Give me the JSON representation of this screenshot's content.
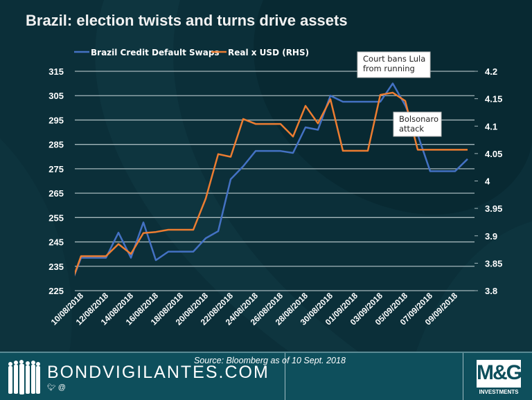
{
  "title": "Brazil: election twists and turns drive assets",
  "footer": {
    "brand": "BONDVIGILANTES.COM",
    "social": "@",
    "source": "Source: Bloomberg as of 10 Sept. 2018",
    "logo_text": "M&G",
    "logo_sub": "INVESTMENTS"
  },
  "colors": {
    "background": "#0b2f39",
    "footer": "#0e4f5c",
    "cds": "#4472c4",
    "brl": "#ed7d31",
    "grid": "#a6b8bc"
  },
  "chart_data": {
    "type": "line",
    "title": "Brazil: election twists and turns drive assets",
    "x": [
      "09/08/2018",
      "10/08/2018",
      "11/08/2018",
      "12/08/2018",
      "13/08/2018",
      "14/08/2018",
      "15/08/2018",
      "16/08/2018",
      "17/08/2018",
      "18/08/2018",
      "19/08/2018",
      "20/08/2018",
      "21/08/2018",
      "22/08/2018",
      "23/08/2018",
      "24/08/2018",
      "25/08/2018",
      "26/08/2018",
      "27/08/2018",
      "28/08/2018",
      "29/08/2018",
      "30/08/2018",
      "31/08/2018",
      "01/09/2018",
      "02/09/2018",
      "03/09/2018",
      "04/09/2018",
      "05/09/2018",
      "06/09/2018",
      "07/09/2018",
      "08/09/2018",
      "09/09/2018",
      "10/09/2018",
      "11/09/2018"
    ],
    "x_tick_labels": [
      "10/08/2018",
      "12/08/2018",
      "14/08/2018",
      "16/08/2018",
      "18/08/2018",
      "20/08/2018",
      "22/08/2018",
      "24/08/2018",
      "26/08/2018",
      "28/08/2018",
      "30/08/2018",
      "01/09/2018",
      "03/09/2018",
      "05/09/2018",
      "07/09/2018",
      "09/09/2018"
    ],
    "series": [
      {
        "name": "Brazil Credit Default Swaps",
        "axis": "left",
        "color": "#4472c4",
        "values": [
          225,
          238.5,
          238.5,
          238.5,
          248.8,
          238.5,
          253,
          237.5,
          241,
          241,
          241,
          246.5,
          249.4,
          270.7,
          276,
          282.3,
          282.3,
          282.3,
          281.5,
          292,
          291,
          305,
          302.5,
          302.5,
          302.5,
          302.5,
          310,
          301,
          289,
          274,
          274,
          274,
          279,
          null
        ]
      },
      {
        "name": "Real x USD (RHS)",
        "axis": "right",
        "color": "#ed7d31",
        "values": [
          3.8,
          3.863,
          3.863,
          3.863,
          3.885,
          3.867,
          3.905,
          3.907,
          3.911,
          3.911,
          3.911,
          3.968,
          4.049,
          4.044,
          4.113,
          4.104,
          4.104,
          4.104,
          4.081,
          4.137,
          4.105,
          4.149,
          4.055,
          4.055,
          4.055,
          4.157,
          4.161,
          4.146,
          4.057,
          4.057,
          4.057,
          4.057,
          4.057,
          null
        ]
      }
    ],
    "y_left": {
      "min": 225,
      "max": 315,
      "ticks": [
        225,
        235,
        245,
        255,
        265,
        275,
        285,
        295,
        305,
        315
      ]
    },
    "y_right": {
      "min": 3.8,
      "max": 4.2,
      "ticks": [
        "3.8",
        "3.85",
        "3.9",
        "3.95",
        "4",
        "4.05",
        "4.1",
        "4.15",
        "4.2"
      ]
    },
    "grid": true,
    "legend_placement": "top",
    "annotations": [
      {
        "text_lines": [
          "Court bans Lula",
          "from running"
        ],
        "date": "05/09/2018"
      },
      {
        "text_lines": [
          "Bolsonaro",
          "attack"
        ],
        "date": "06/09/2018"
      }
    ]
  }
}
